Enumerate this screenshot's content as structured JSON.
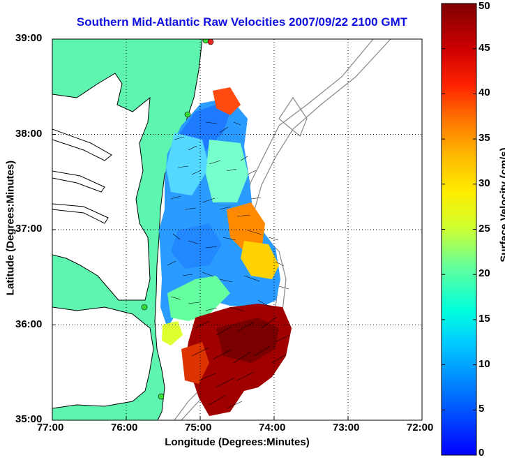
{
  "title": "Southern Mid-Atlantic Raw Velocities 2007/09/22 2100 GMT",
  "xlabel": "Longitude (Degrees:Minutes)",
  "ylabel": "Latitude (Degrees:Minutes)",
  "x_ticks": [
    "77:00",
    "76:00",
    "75:00",
    "74:00",
    "73:00",
    "72:00"
  ],
  "y_ticks": [
    "39:00",
    "38:00",
    "37:00",
    "36:00",
    "35:00"
  ],
  "colorbar": {
    "label": "Surface Velocity (cm/s)",
    "ticks": [
      "0",
      "5",
      "10",
      "15",
      "20",
      "25",
      "30",
      "35",
      "40",
      "45",
      "50"
    ],
    "min": 0,
    "max": 50,
    "colormap": "jet"
  },
  "colors": {
    "land": "#5ef5b0",
    "coastline": "#000000",
    "title": "#1010e0",
    "grid": "#000000",
    "bathymetry": "#888888",
    "station_green": "#33dd33",
    "station_red": "#ee2222"
  },
  "map": {
    "lon_range": [
      "77:00",
      "72:00"
    ],
    "lat_range": [
      "35:00",
      "39:00"
    ],
    "grid": "dotted"
  }
}
